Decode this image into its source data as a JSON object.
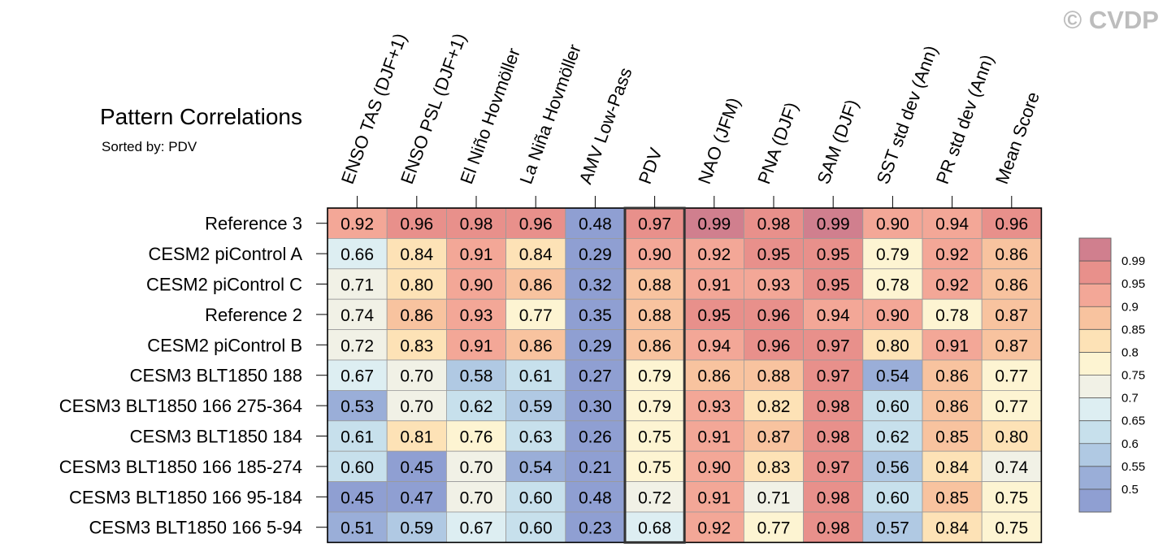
{
  "watermark": "© CVDP",
  "chart_data": {
    "type": "heatmap",
    "title": "Pattern Correlations",
    "subtitle": "Sorted by: PDV",
    "highlight_column": "PDV",
    "columns": [
      "ENSO TAS (DJF+1)",
      "ENSO PSL (DJF+1)",
      "El Niño Hovmöller",
      "La Niña Hovmöller",
      "AMV Low-Pass",
      "PDV",
      "NAO (JFM)",
      "PNA (DJF)",
      "SAM (DJF)",
      "SST std dev (Ann)",
      "PR std dev (Ann)",
      "Mean Score"
    ],
    "rows": [
      "Reference 3",
      "CESM2 piControl A",
      "CESM2 piControl C",
      "Reference 2",
      "CESM2 piControl B",
      "CESM3 BLT1850 188",
      "CESM3 BLT1850 166 275-364",
      "CESM3 BLT1850 184",
      "CESM3 BLT1850 166 185-274",
      "CESM3 BLT1850 166 95-184",
      "CESM3 BLT1850 166 5-94"
    ],
    "values": [
      [
        0.92,
        0.96,
        0.98,
        0.96,
        0.48,
        0.97,
        0.99,
        0.98,
        0.99,
        0.9,
        0.94,
        0.96
      ],
      [
        0.66,
        0.84,
        0.91,
        0.84,
        0.29,
        0.9,
        0.92,
        0.95,
        0.95,
        0.79,
        0.92,
        0.86
      ],
      [
        0.71,
        0.8,
        0.9,
        0.86,
        0.32,
        0.88,
        0.91,
        0.93,
        0.95,
        0.78,
        0.92,
        0.86
      ],
      [
        0.74,
        0.86,
        0.93,
        0.77,
        0.35,
        0.88,
        0.95,
        0.96,
        0.94,
        0.9,
        0.78,
        0.87
      ],
      [
        0.72,
        0.83,
        0.91,
        0.86,
        0.29,
        0.86,
        0.94,
        0.96,
        0.97,
        0.8,
        0.91,
        0.87
      ],
      [
        0.67,
        0.7,
        0.58,
        0.61,
        0.27,
        0.79,
        0.86,
        0.88,
        0.97,
        0.54,
        0.86,
        0.77
      ],
      [
        0.53,
        0.7,
        0.62,
        0.59,
        0.3,
        0.79,
        0.93,
        0.82,
        0.98,
        0.6,
        0.86,
        0.77
      ],
      [
        0.61,
        0.81,
        0.76,
        0.63,
        0.26,
        0.75,
        0.91,
        0.87,
        0.98,
        0.62,
        0.85,
        0.8
      ],
      [
        0.6,
        0.45,
        0.7,
        0.54,
        0.21,
        0.75,
        0.9,
        0.83,
        0.97,
        0.56,
        0.84,
        0.74
      ],
      [
        0.45,
        0.47,
        0.7,
        0.6,
        0.48,
        0.72,
        0.91,
        0.71,
        0.98,
        0.6,
        0.85,
        0.75
      ],
      [
        0.51,
        0.59,
        0.67,
        0.6,
        0.23,
        0.68,
        0.92,
        0.77,
        0.98,
        0.57,
        0.84,
        0.75
      ]
    ],
    "colorbar": {
      "levels": [
        0.99,
        0.95,
        0.9,
        0.85,
        0.8,
        0.75,
        0.7,
        0.65,
        0.6,
        0.55,
        0.5
      ],
      "labels": [
        "0.99",
        "0.95",
        "0.9",
        "0.85",
        "0.8",
        "0.75",
        "0.7",
        "0.65",
        "0.6",
        "0.55",
        "0.5"
      ],
      "colors": [
        "#d07f8e",
        "#e8908b",
        "#f3a797",
        "#f8c39f",
        "#fde2b6",
        "#fdf4d2",
        "#f1f1e6",
        "#ddeef2",
        "#c7e0ec",
        "#b0c9e3",
        "#9aaed8",
        "#8f9fd2"
      ]
    },
    "highlight_color": "#333333"
  }
}
